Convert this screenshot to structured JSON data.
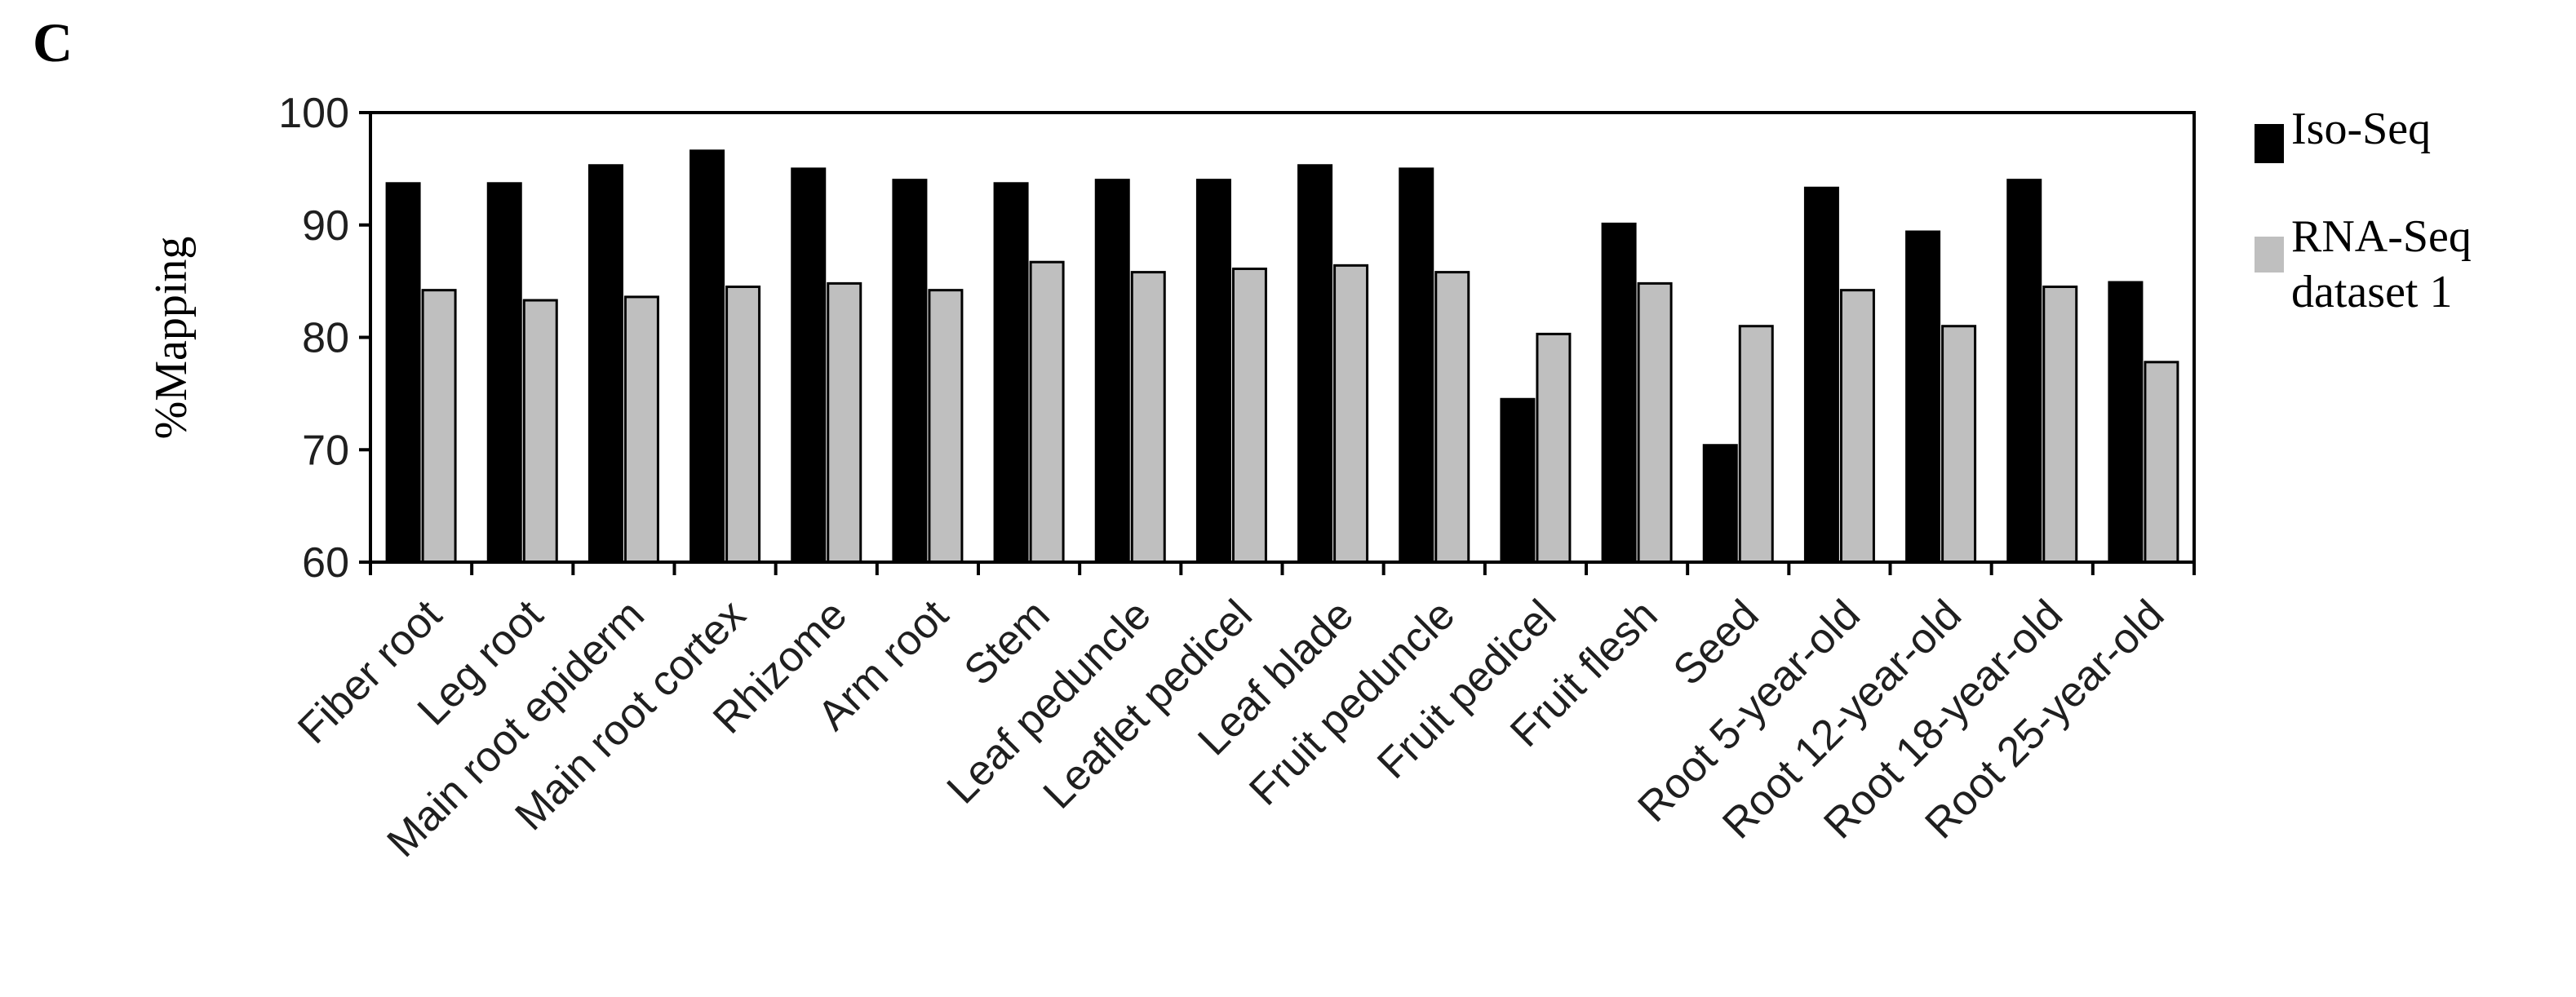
{
  "panel_label": "C",
  "colors": {
    "series_iso": "#000000",
    "series_rna": "#bfbfbf",
    "axis": "#000000",
    "tick_label": "#1f1f1f"
  },
  "chart_data": {
    "type": "bar",
    "title": "",
    "xlabel": "",
    "ylabel": "%Mapping",
    "ylim": [
      60,
      100
    ],
    "yticks": [
      60,
      70,
      80,
      90,
      100
    ],
    "grid": false,
    "legend_position": "right",
    "categories": [
      "Fiber root",
      "Leg root",
      "Main root epiderm",
      "Main root cortex",
      "Rhizome",
      "Arm root",
      "Stem",
      "Leaf peduncle",
      "Leaflet pedicel",
      "Leaf blade",
      "Fruit peduncle",
      "Fruit pedicel",
      "Fruit flesh",
      "Seed",
      "Root 5-year-old",
      "Root 12-year-old",
      "Root 18-year-old",
      "Root 25-year-old"
    ],
    "series": [
      {
        "name": "Iso-Seq",
        "values": [
          93.7,
          93.7,
          95.3,
          96.6,
          95.0,
          94.0,
          93.7,
          94.0,
          94.0,
          95.3,
          95.0,
          74.5,
          90.1,
          70.4,
          93.3,
          89.4,
          94.0,
          84.9
        ]
      },
      {
        "name": "RNA-Seq dataset 1",
        "name_lines": [
          "RNA-Seq",
          "dataset 1"
        ],
        "values": [
          84.2,
          83.3,
          83.6,
          84.5,
          84.8,
          84.2,
          86.7,
          85.8,
          86.1,
          86.4,
          85.8,
          80.3,
          84.8,
          81.0,
          84.2,
          81.0,
          84.5,
          77.8
        ]
      }
    ]
  }
}
